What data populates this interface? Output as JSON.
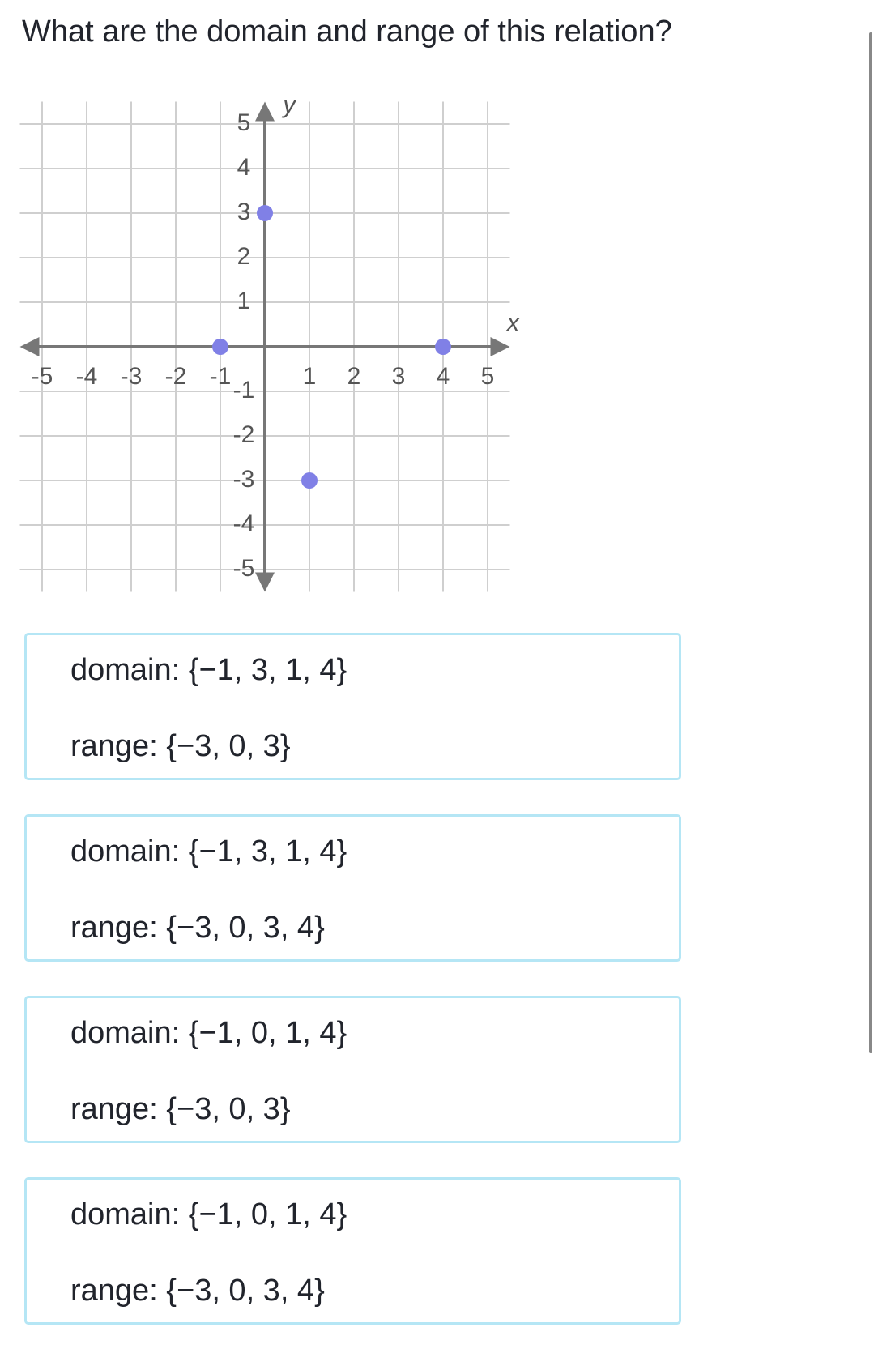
{
  "question": "What are the domain and range of this relation?",
  "chart_data": {
    "type": "scatter",
    "x_label": "x",
    "y_label": "y",
    "series": [
      {
        "color": "#8080e6",
        "x": [
          0,
          -1,
          4,
          1
        ],
        "values": [
          3,
          0,
          0,
          -3
        ]
      }
    ],
    "xlim": [
      -5.5,
      5.5
    ],
    "ylim": [
      -5.5,
      5.5
    ],
    "xticks": [
      -5,
      -4,
      -3,
      -2,
      -1,
      1,
      2,
      3,
      4,
      5
    ],
    "yticks": [
      -5,
      -4,
      -3,
      -2,
      -1,
      1,
      2,
      3,
      4,
      5
    ],
    "grid": true
  },
  "choices": [
    {
      "domain": "domain: {−1, 3, 1, 4}",
      "range": "range: {−3, 0, 3}"
    },
    {
      "domain": "domain: {−1, 3, 1, 4}",
      "range": "range: {−3, 0, 3, 4}"
    },
    {
      "domain": "domain: {−1, 0, 1, 4}",
      "range": "range: {−3, 0, 3}"
    },
    {
      "domain": "domain: {−1, 0, 1, 4}",
      "range": "range: {−3, 0, 3, 4}"
    }
  ]
}
